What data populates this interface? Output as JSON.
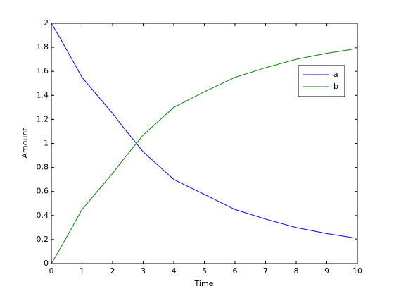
{
  "chart_data": {
    "type": "line",
    "x_label": "Time",
    "y_label": "Amount",
    "x": [
      0,
      0.3,
      1,
      2,
      2.3,
      3,
      4,
      5,
      6,
      7,
      8,
      9,
      10
    ],
    "series": [
      {
        "name": "a",
        "color": "#0000ff",
        "values": [
          2,
          1.87,
          1.55,
          1.25,
          1.15,
          0.93,
          0.7,
          0.575,
          0.45,
          0.37,
          0.3,
          0.25,
          0.21
        ]
      },
      {
        "name": "b",
        "color": "#008000",
        "values": [
          0,
          0.13,
          0.45,
          0.75,
          0.85,
          1.07,
          1.3,
          1.43,
          1.55,
          1.63,
          1.7,
          1.75,
          1.79
        ]
      }
    ],
    "xlim": [
      0,
      10
    ],
    "xticks": [
      0,
      1,
      2,
      3,
      4,
      5,
      6,
      7,
      8,
      9,
      10
    ],
    "ylim": [
      0,
      2
    ],
    "yticks": [
      0,
      0.2,
      0.4,
      0.6,
      0.8,
      1,
      1.2,
      1.4,
      1.6,
      1.8,
      2
    ],
    "grid": false,
    "legend": "northeast"
  }
}
